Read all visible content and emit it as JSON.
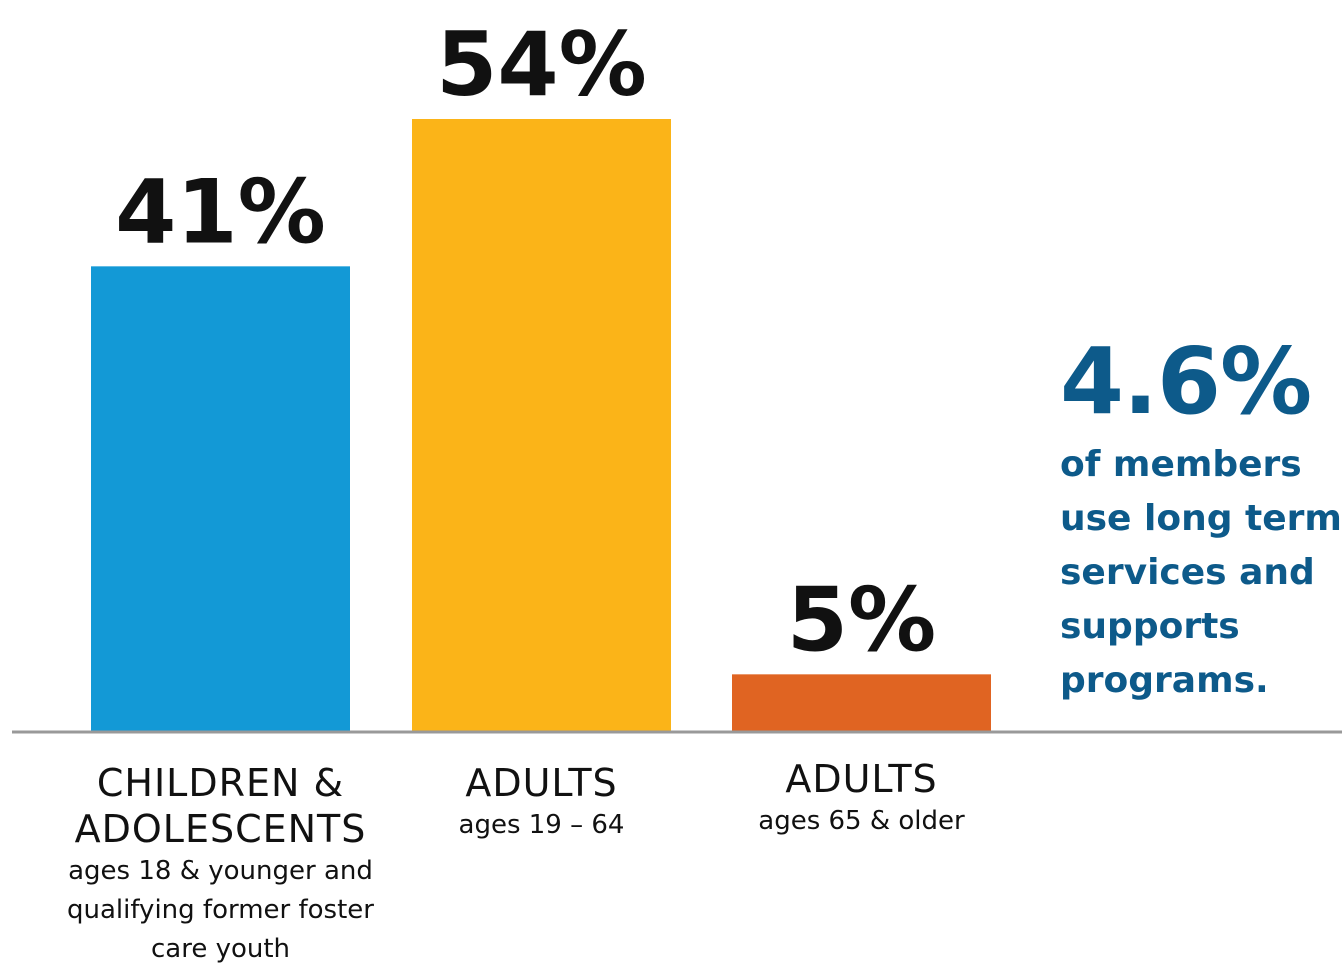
{
  "chart_data": {
    "type": "bar",
    "categories": [
      "CHILDREN & ADOLESCENTS",
      "ADULTS",
      "ADULTS"
    ],
    "subtitles": [
      "ages 18 & younger and qualifying former foster care youth",
      "ages 19 – 64",
      "ages 65 & older"
    ],
    "values": [
      41,
      54,
      5
    ],
    "value_labels": [
      "41%",
      "54%",
      "5%"
    ],
    "colors": [
      "#1399d6",
      "#fbb418",
      "#e06422"
    ],
    "title": "",
    "xlabel": "",
    "ylabel": "",
    "ylim": [
      0,
      54
    ],
    "grid": false,
    "baseline_color": "#999999"
  },
  "callout": {
    "value": "4.6%",
    "text": "of members use long term services and supports programs.",
    "color": "#0d5a8a"
  }
}
